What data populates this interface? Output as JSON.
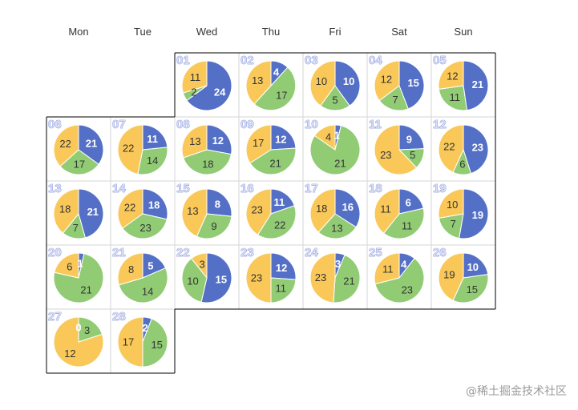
{
  "chart_data": {
    "type": "pie",
    "layout": "calendar",
    "weekdays": [
      "Mon",
      "Tue",
      "Wed",
      "Thu",
      "Fri",
      "Sat",
      "Sun"
    ],
    "first_weekday_index": 2,
    "colors": [
      "#5470c6",
      "#91cc75",
      "#fac858"
    ],
    "days": [
      {
        "day": "01",
        "values": [
          24,
          2,
          11
        ]
      },
      {
        "day": "02",
        "values": [
          4,
          17,
          13
        ]
      },
      {
        "day": "03",
        "values": [
          10,
          5,
          10
        ]
      },
      {
        "day": "04",
        "values": [
          15,
          7,
          12
        ]
      },
      {
        "day": "05",
        "values": [
          21,
          11,
          12
        ]
      },
      {
        "day": "06",
        "values": [
          21,
          17,
          22
        ]
      },
      {
        "day": "07",
        "values": [
          11,
          14,
          22
        ]
      },
      {
        "day": "08",
        "values": [
          12,
          18,
          13
        ]
      },
      {
        "day": "09",
        "values": [
          12,
          21,
          17
        ]
      },
      {
        "day": "10",
        "values": [
          1,
          21,
          4
        ]
      },
      {
        "day": "11",
        "values": [
          9,
          5,
          23
        ]
      },
      {
        "day": "12",
        "values": [
          23,
          6,
          22
        ]
      },
      {
        "day": "13",
        "values": [
          21,
          7,
          18
        ]
      },
      {
        "day": "14",
        "values": [
          18,
          23,
          22
        ]
      },
      {
        "day": "15",
        "values": [
          8,
          9,
          13
        ]
      },
      {
        "day": "16",
        "values": [
          11,
          22,
          23
        ]
      },
      {
        "day": "17",
        "values": [
          16,
          13,
          18
        ]
      },
      {
        "day": "18",
        "values": [
          6,
          11,
          11
        ]
      },
      {
        "day": "19",
        "values": [
          19,
          7,
          10
        ]
      },
      {
        "day": "20",
        "values": [
          1,
          21,
          6
        ]
      },
      {
        "day": "21",
        "values": [
          5,
          14,
          8
        ]
      },
      {
        "day": "22",
        "values": [
          15,
          10,
          3
        ]
      },
      {
        "day": "23",
        "values": [
          12,
          11,
          23
        ]
      },
      {
        "day": "24",
        "values": [
          3,
          21,
          23
        ]
      },
      {
        "day": "25",
        "values": [
          4,
          23,
          11
        ]
      },
      {
        "day": "26",
        "values": [
          10,
          15,
          19
        ]
      },
      {
        "day": "27",
        "values": [
          0,
          3,
          12
        ]
      },
      {
        "day": "28",
        "values": [
          2,
          15,
          17
        ]
      }
    ]
  },
  "watermark": "@稀土掘金技术社区"
}
